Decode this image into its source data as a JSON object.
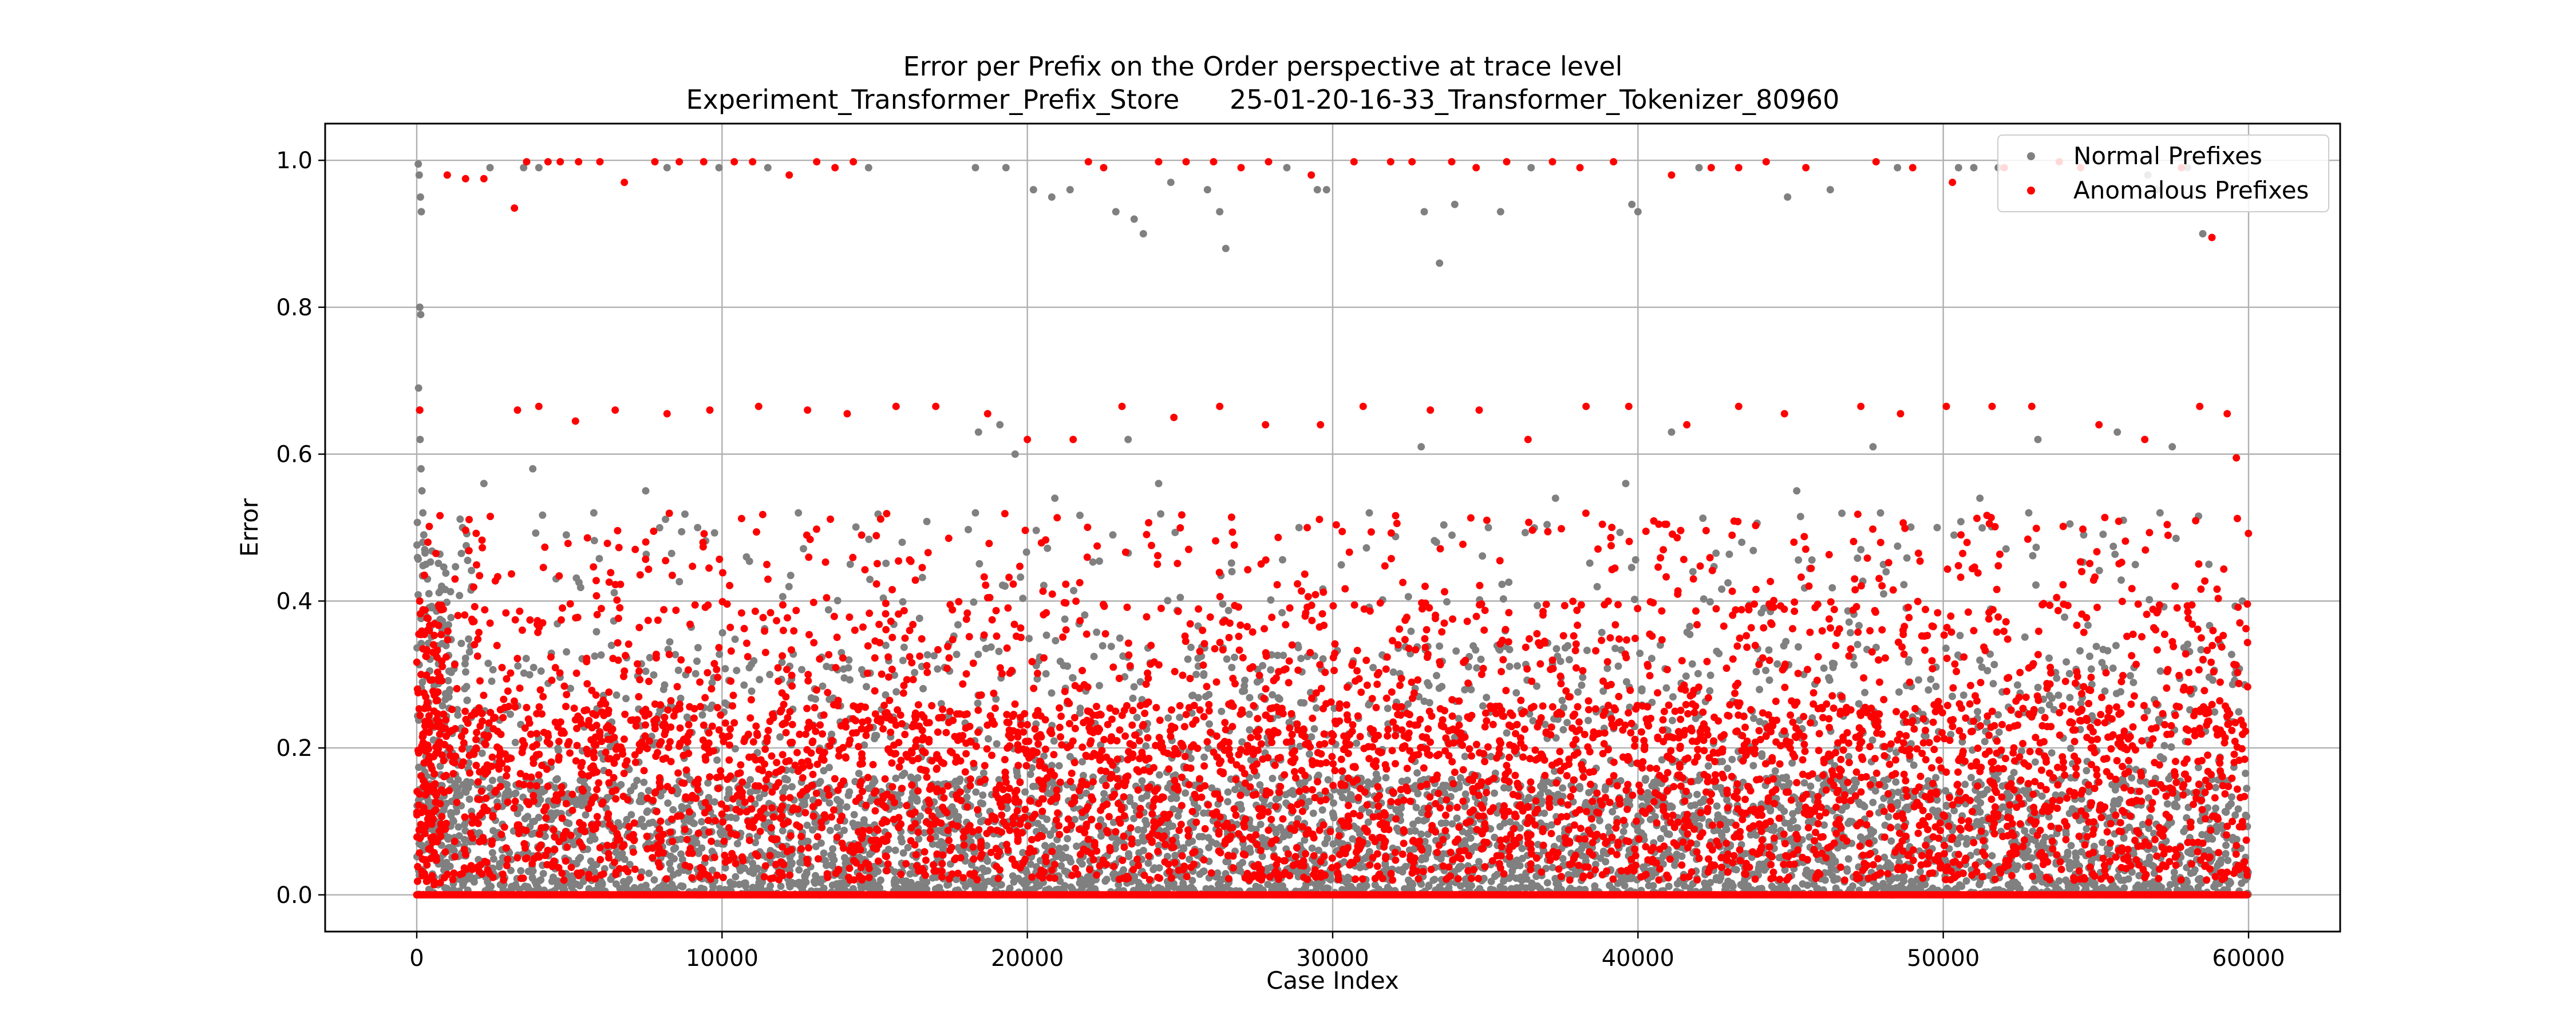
{
  "chart_data": {
    "type": "scatter",
    "title": "Error per Prefix on the Order perspective at trace level",
    "subtitle": "Experiment_Transformer_Prefix_Store      25-01-20-16-33_Transformer_Tokenizer_80960",
    "xlabel": "Case Index",
    "ylabel": "Error",
    "xlim": [
      -3000,
      63000
    ],
    "ylim": [
      -0.05,
      1.05
    ],
    "xticks": [
      0,
      10000,
      20000,
      30000,
      40000,
      50000,
      60000
    ],
    "yticks": [
      0.0,
      0.2,
      0.4,
      0.6,
      0.8,
      1.0
    ],
    "xtick_labels": [
      "0",
      "10000",
      "20000",
      "30000",
      "40000",
      "50000",
      "60000"
    ],
    "ytick_labels": [
      "0.0",
      "0.2",
      "0.4",
      "0.6",
      "0.8",
      "1.0"
    ],
    "grid": true,
    "legend_position": "top-right",
    "x_range": [
      0,
      60000
    ],
    "series": [
      {
        "name": "Normal Prefixes",
        "color": "#808080",
        "points": [
          [
            50,
            0.995
          ],
          [
            80,
            0.98
          ],
          [
            120,
            0.95
          ],
          [
            150,
            0.93
          ],
          [
            100,
            0.8
          ],
          [
            130,
            0.79
          ],
          [
            60,
            0.69
          ],
          [
            90,
            0.66
          ],
          [
            110,
            0.62
          ],
          [
            140,
            0.58
          ],
          [
            170,
            0.55
          ],
          [
            200,
            0.52
          ],
          [
            230,
            0.49
          ],
          [
            260,
            0.47
          ],
          [
            300,
            0.45
          ],
          [
            350,
            0.43
          ],
          [
            400,
            0.41
          ],
          [
            2400,
            0.99
          ],
          [
            3500,
            0.99
          ],
          [
            4000,
            0.99
          ],
          [
            8200,
            0.99
          ],
          [
            9900,
            0.99
          ],
          [
            11500,
            0.99
          ],
          [
            14800,
            0.99
          ],
          [
            18300,
            0.99
          ],
          [
            19300,
            0.99
          ],
          [
            20200,
            0.96
          ],
          [
            20800,
            0.95
          ],
          [
            21400,
            0.96
          ],
          [
            22900,
            0.93
          ],
          [
            23500,
            0.92
          ],
          [
            23800,
            0.9
          ],
          [
            24700,
            0.97
          ],
          [
            25900,
            0.96
          ],
          [
            26300,
            0.93
          ],
          [
            26500,
            0.88
          ],
          [
            28500,
            0.99
          ],
          [
            29500,
            0.96
          ],
          [
            29800,
            0.96
          ],
          [
            33000,
            0.93
          ],
          [
            33500,
            0.86
          ],
          [
            34000,
            0.94
          ],
          [
            35500,
            0.93
          ],
          [
            36500,
            0.99
          ],
          [
            39800,
            0.94
          ],
          [
            40000,
            0.93
          ],
          [
            42000,
            0.99
          ],
          [
            44900,
            0.95
          ],
          [
            46300,
            0.96
          ],
          [
            48500,
            0.99
          ],
          [
            50500,
            0.99
          ],
          [
            51000,
            0.99
          ],
          [
            51800,
            0.99
          ],
          [
            56700,
            0.98
          ],
          [
            57000,
            0.96
          ],
          [
            58000,
            0.99
          ],
          [
            58500,
            0.9
          ],
          [
            1500,
            0.5
          ],
          [
            2200,
            0.56
          ],
          [
            3800,
            0.58
          ],
          [
            4900,
            0.49
          ],
          [
            5800,
            0.52
          ],
          [
            7500,
            0.55
          ],
          [
            9200,
            0.5
          ],
          [
            10800,
            0.46
          ],
          [
            12500,
            0.52
          ],
          [
            14200,
            0.45
          ],
          [
            15900,
            0.48
          ],
          [
            18300,
            0.52
          ],
          [
            19600,
            0.6
          ],
          [
            20900,
            0.54
          ],
          [
            22800,
            0.49
          ],
          [
            24300,
            0.56
          ],
          [
            26700,
            0.44
          ],
          [
            28900,
            0.5
          ],
          [
            31200,
            0.52
          ],
          [
            33400,
            0.48
          ],
          [
            35100,
            0.5
          ],
          [
            37300,
            0.54
          ],
          [
            39600,
            0.56
          ],
          [
            41800,
            0.44
          ],
          [
            43400,
            0.48
          ],
          [
            45200,
            0.55
          ],
          [
            47300,
            0.47
          ],
          [
            49800,
            0.5
          ],
          [
            51200,
            0.54
          ],
          [
            52800,
            0.52
          ],
          [
            54600,
            0.49
          ],
          [
            55900,
            0.51
          ],
          [
            57100,
            0.52
          ],
          [
            58700,
            0.45
          ],
          [
            59800,
            0.4
          ],
          [
            18400,
            0.63
          ],
          [
            19100,
            0.64
          ],
          [
            23300,
            0.62
          ],
          [
            32900,
            0.61
          ],
          [
            41100,
            0.63
          ],
          [
            47700,
            0.61
          ],
          [
            53100,
            0.62
          ],
          [
            55700,
            0.63
          ],
          [
            57500,
            0.61
          ]
        ]
      },
      {
        "name": "Anomalous Prefixes",
        "color": "#ff0000",
        "points": [
          [
            3200,
            0.935
          ],
          [
            3600,
            0.998
          ],
          [
            4300,
            0.998
          ],
          [
            4700,
            0.998
          ],
          [
            5300,
            0.998
          ],
          [
            6000,
            0.998
          ],
          [
            6800,
            0.97
          ],
          [
            7800,
            0.998
          ],
          [
            8600,
            0.998
          ],
          [
            9400,
            0.998
          ],
          [
            1000,
            0.98
          ],
          [
            1600,
            0.975
          ],
          [
            2200,
            0.975
          ],
          [
            10400,
            0.998
          ],
          [
            11000,
            0.998
          ],
          [
            12200,
            0.98
          ],
          [
            13100,
            0.998
          ],
          [
            13700,
            0.99
          ],
          [
            14300,
            0.998
          ],
          [
            22000,
            0.998
          ],
          [
            22500,
            0.99
          ],
          [
            24300,
            0.998
          ],
          [
            25200,
            0.998
          ],
          [
            26100,
            0.998
          ],
          [
            27000,
            0.99
          ],
          [
            27900,
            0.998
          ],
          [
            29300,
            0.98
          ],
          [
            30700,
            0.998
          ],
          [
            31900,
            0.998
          ],
          [
            32600,
            0.998
          ],
          [
            33900,
            0.998
          ],
          [
            34700,
            0.99
          ],
          [
            35700,
            0.998
          ],
          [
            37200,
            0.998
          ],
          [
            38100,
            0.99
          ],
          [
            39200,
            0.998
          ],
          [
            41100,
            0.98
          ],
          [
            42400,
            0.99
          ],
          [
            43300,
            0.99
          ],
          [
            44200,
            0.998
          ],
          [
            45500,
            0.99
          ],
          [
            47800,
            0.998
          ],
          [
            49000,
            0.99
          ],
          [
            50300,
            0.97
          ],
          [
            52000,
            0.99
          ],
          [
            53800,
            0.998
          ],
          [
            54500,
            0.99
          ],
          [
            57800,
            0.99
          ],
          [
            58800,
            0.895
          ],
          [
            100,
            0.66
          ],
          [
            3300,
            0.66
          ],
          [
            4000,
            0.665
          ],
          [
            5200,
            0.645
          ],
          [
            6500,
            0.66
          ],
          [
            8200,
            0.655
          ],
          [
            9600,
            0.66
          ],
          [
            11200,
            0.665
          ],
          [
            12800,
            0.66
          ],
          [
            14100,
            0.655
          ],
          [
            15700,
            0.665
          ],
          [
            17000,
            0.665
          ],
          [
            18700,
            0.655
          ],
          [
            20000,
            0.62
          ],
          [
            21500,
            0.62
          ],
          [
            23100,
            0.665
          ],
          [
            24800,
            0.65
          ],
          [
            26300,
            0.665
          ],
          [
            27800,
            0.64
          ],
          [
            29600,
            0.64
          ],
          [
            31000,
            0.665
          ],
          [
            33200,
            0.66
          ],
          [
            34800,
            0.66
          ],
          [
            36400,
            0.62
          ],
          [
            38300,
            0.665
          ],
          [
            39700,
            0.665
          ],
          [
            41600,
            0.64
          ],
          [
            43300,
            0.665
          ],
          [
            44800,
            0.655
          ],
          [
            47300,
            0.665
          ],
          [
            48600,
            0.655
          ],
          [
            50100,
            0.665
          ],
          [
            51600,
            0.665
          ],
          [
            52900,
            0.665
          ],
          [
            55100,
            0.64
          ],
          [
            56600,
            0.62
          ],
          [
            58400,
            0.665
          ],
          [
            59300,
            0.655
          ],
          [
            59600,
            0.595
          ]
        ]
      }
    ]
  }
}
